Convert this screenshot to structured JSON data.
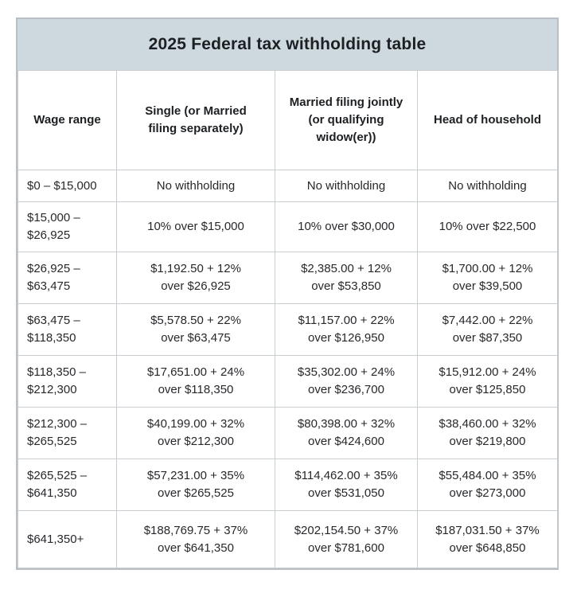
{
  "title": "2025 Federal tax withholding table",
  "theme": {
    "title_band_background": "#cdd8df",
    "border_color": "#c9ced2",
    "outer_border_color": "#b9bfc4",
    "text_color": "#26282b",
    "page_background": "#ffffff"
  },
  "table": {
    "columns": [
      "Wage range",
      "Single (or Married\nfiling separately)",
      "Married filing jointly\n(or qualifying\nwidow(er))",
      "Head of household"
    ],
    "rows": [
      {
        "range": "$0 – $15,000",
        "single": "No withholding",
        "married_joint": "No withholding",
        "head_household": "No withholding"
      },
      {
        "range": "$15,000 –\n$26,925",
        "single": "10% over $15,000",
        "married_joint": "10% over $30,000",
        "head_household": "10% over $22,500"
      },
      {
        "range": "$26,925 –\n$63,475",
        "single": "$1,192.50 + 12%\nover $26,925",
        "married_joint": "$2,385.00 + 12%\nover $53,850",
        "head_household": "$1,700.00 + 12%\nover $39,500"
      },
      {
        "range": "$63,475 –\n$118,350",
        "single": "$5,578.50 + 22%\nover $63,475",
        "married_joint": "$11,157.00 + 22%\nover $126,950",
        "head_household": "$7,442.00 + 22%\nover $87,350"
      },
      {
        "range": "$118,350 –\n$212,300",
        "single": "$17,651.00 + 24%\nover $118,350",
        "married_joint": "$35,302.00 + 24%\nover $236,700",
        "head_household": "$15,912.00 + 24%\nover $125,850"
      },
      {
        "range": "$212,300 –\n$265,525",
        "single": "$40,199.00 + 32%\nover $212,300",
        "married_joint": "$80,398.00 + 32%\nover $424,600",
        "head_household": "$38,460.00 + 32%\nover $219,800"
      },
      {
        "range": "$265,525 –\n$641,350",
        "single": "$57,231.00 + 35%\nover $265,525",
        "married_joint": "$114,462.00 + 35%\nover $531,050",
        "head_household": "$55,484.00 + 35%\nover $273,000"
      },
      {
        "range": "$641,350+",
        "single": "$188,769.75 + 37%\nover $641,350",
        "married_joint": "$202,154.50 + 37%\nover $781,600",
        "head_household": "$187,031.50 + 37%\nover $648,850"
      }
    ]
  }
}
